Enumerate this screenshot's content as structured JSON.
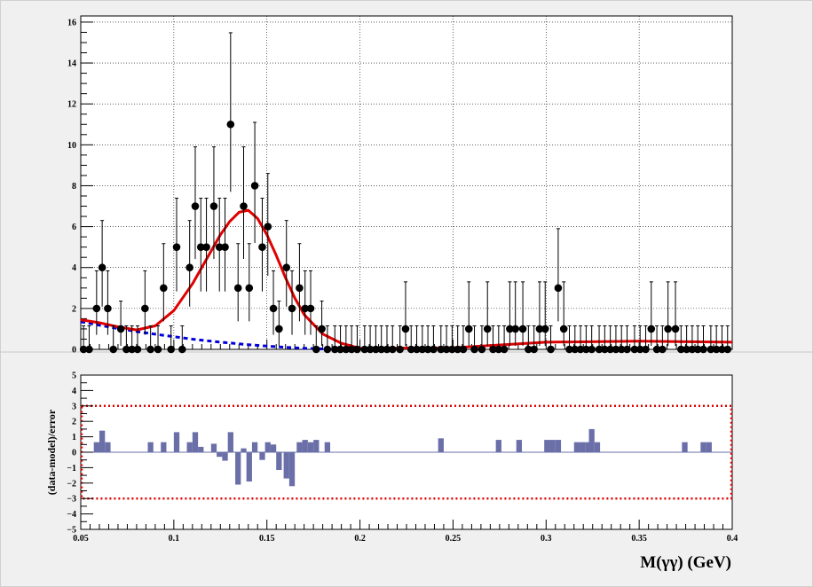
{
  "chart_data": [
    {
      "type": "scatter",
      "panel": "fit",
      "xlim": [
        0.05,
        0.4
      ],
      "ylim": [
        0,
        16.3
      ],
      "xticks": [
        0.05,
        0.1,
        0.15,
        0.2,
        0.25,
        0.3,
        0.35,
        0.4
      ],
      "yticks": [
        0,
        2,
        4,
        6,
        8,
        10,
        12,
        14,
        16
      ],
      "ytick_labels": [
        "0",
        "2",
        "4",
        "6",
        "8",
        "10",
        "12",
        "14",
        "16"
      ],
      "grid": true,
      "data_points": {
        "x": [
          0.0515,
          0.0545,
          0.0585,
          0.0615,
          0.0645,
          0.0675,
          0.0715,
          0.0745,
          0.0775,
          0.0805,
          0.0845,
          0.0875,
          0.0915,
          0.0945,
          0.0985,
          0.1015,
          0.1045,
          0.1085,
          0.1115,
          0.1145,
          0.1175,
          0.1215,
          0.1245,
          0.1275,
          0.1305,
          0.1345,
          0.1375,
          0.1405,
          0.1435,
          0.1475,
          0.1505,
          0.1535,
          0.1565,
          0.1605,
          0.1635,
          0.1675,
          0.1705,
          0.1735,
          0.1765,
          0.1795,
          0.1825,
          0.1865,
          0.1895,
          0.1925,
          0.1955,
          0.1985,
          0.2025,
          0.2055,
          0.2085,
          0.2115,
          0.2145,
          0.2175,
          0.2215,
          0.2245,
          0.2275,
          0.2305,
          0.2335,
          0.2365,
          0.2395,
          0.2435,
          0.2465,
          0.2495,
          0.2525,
          0.2555,
          0.2585,
          0.2615,
          0.2655,
          0.2685,
          0.2715,
          0.2745,
          0.2775,
          0.2805,
          0.2835,
          0.2875,
          0.2905,
          0.2935,
          0.2965,
          0.2995,
          0.3025,
          0.3065,
          0.3095,
          0.3125,
          0.3155,
          0.3185,
          0.3215,
          0.3245,
          0.3285,
          0.3315,
          0.3345,
          0.3375,
          0.3405,
          0.3435,
          0.3475,
          0.3505,
          0.3535,
          0.3565,
          0.3595,
          0.3625,
          0.3655,
          0.3695,
          0.3725,
          0.3755,
          0.3785,
          0.3815,
          0.3845,
          0.3885,
          0.3915,
          0.3945,
          0.3975
        ],
        "y": [
          0,
          0,
          2,
          4,
          2,
          0,
          1,
          0,
          0,
          0,
          2,
          0,
          0,
          3,
          0,
          5,
          0,
          4,
          7,
          5,
          5,
          7,
          5,
          5,
          11,
          3,
          7,
          3,
          8,
          5,
          6,
          2,
          1,
          4,
          2,
          3,
          2,
          2,
          0,
          1,
          0,
          0,
          0,
          0,
          0,
          0,
          0,
          0,
          0,
          0,
          0,
          0,
          0,
          1,
          0,
          0,
          0,
          0,
          0,
          0,
          0,
          0,
          0,
          0,
          1,
          0,
          0,
          1,
          0,
          0,
          0,
          1,
          1,
          1,
          0,
          0,
          1,
          1,
          0,
          3,
          1,
          0,
          0,
          0,
          0,
          0,
          0,
          0,
          0,
          0,
          0,
          0,
          0,
          0,
          0,
          1,
          0,
          0,
          1,
          1,
          0,
          0,
          0,
          0,
          0,
          0,
          0,
          0,
          0
        ],
        "err_up": [
          1.15,
          1.15,
          1.84,
          2.3,
          1.84,
          1.15,
          1.36,
          1.15,
          1.15,
          1.15,
          1.84,
          1.15,
          1.15,
          2.17,
          1.15,
          2.39,
          1.15,
          2.3,
          2.9,
          2.39,
          2.39,
          2.9,
          2.39,
          2.39,
          4.48,
          2.17,
          2.9,
          2.17,
          3.1,
          2.39,
          2.6,
          1.84,
          1.36,
          2.3,
          1.84,
          2.17,
          1.84,
          1.84,
          1.15,
          1.36,
          1.15,
          1.15,
          1.15,
          1.15,
          1.15,
          1.15,
          1.15,
          1.15,
          1.15,
          1.15,
          1.15,
          1.15,
          1.15,
          2.3,
          1.15,
          1.15,
          1.15,
          1.15,
          1.15,
          1.15,
          1.15,
          1.15,
          1.15,
          1.15,
          2.3,
          1.15,
          1.15,
          2.3,
          1.15,
          1.15,
          1.15,
          2.3,
          2.3,
          2.3,
          1.15,
          1.15,
          2.3,
          2.3,
          1.15,
          2.9,
          2.3,
          1.15,
          1.15,
          1.15,
          1.15,
          1.15,
          1.15,
          1.15,
          1.15,
          1.15,
          1.15,
          1.15,
          1.15,
          1.15,
          1.15,
          2.3,
          1.15,
          1.15,
          2.3,
          2.3,
          1.15,
          1.15,
          1.15,
          1.15,
          1.15,
          1.15,
          1.15,
          1.15,
          1.15
        ],
        "err_down": [
          0,
          0,
          1.29,
          1.91,
          1.29,
          0,
          0.83,
          0,
          0,
          0,
          1.29,
          0,
          0,
          1.63,
          0,
          2.17,
          0,
          1.91,
          2.58,
          2.17,
          2.17,
          2.58,
          2.17,
          2.17,
          3.3,
          1.63,
          2.58,
          1.63,
          2.8,
          2.17,
          2.4,
          1.29,
          0.83,
          1.91,
          1.29,
          1.63,
          1.29,
          1.29,
          0,
          0.83,
          0,
          0,
          0,
          0,
          0,
          0,
          0,
          0,
          0,
          0,
          0,
          0,
          0,
          0.83,
          0,
          0,
          0,
          0,
          0,
          0,
          0,
          0,
          0,
          0,
          0.83,
          0,
          0,
          0.83,
          0,
          0,
          0,
          0.83,
          0.83,
          0.83,
          0,
          0,
          0.83,
          0.83,
          0,
          1.63,
          0.83,
          0,
          0,
          0,
          0,
          0,
          0,
          0,
          0,
          0,
          0,
          0,
          0,
          0,
          0,
          0.83,
          0,
          0,
          0.83,
          0.83,
          0,
          0,
          0,
          0,
          0,
          0,
          0,
          0,
          0
        ]
      },
      "total_fit": {
        "x": [
          0.05,
          0.06,
          0.07,
          0.08,
          0.09,
          0.1,
          0.11,
          0.12,
          0.125,
          0.13,
          0.135,
          0.14,
          0.145,
          0.15,
          0.155,
          0.16,
          0.165,
          0.17,
          0.18,
          0.19,
          0.2,
          0.25,
          0.3,
          0.35,
          0.4
        ],
        "y": [
          1.45,
          1.3,
          1.1,
          0.95,
          1.15,
          1.9,
          3.2,
          4.8,
          5.6,
          6.25,
          6.7,
          6.8,
          6.4,
          5.6,
          4.6,
          3.5,
          2.5,
          1.7,
          0.75,
          0.3,
          0.05,
          0.08,
          0.35,
          0.4,
          0.35
        ]
      },
      "background_fit": {
        "x": [
          0.05,
          0.06,
          0.07,
          0.08,
          0.09,
          0.1,
          0.11,
          0.12,
          0.13,
          0.14,
          0.15,
          0.16,
          0.17,
          0.18,
          0.19
        ],
        "y": [
          1.35,
          1.18,
          1.02,
          0.87,
          0.74,
          0.62,
          0.5,
          0.4,
          0.31,
          0.23,
          0.16,
          0.1,
          0.05,
          0.02,
          0.0
        ]
      },
      "colors": {
        "data": "#000000",
        "total_fit": "#e00000",
        "background_fit": "#0000dd"
      }
    },
    {
      "type": "bar",
      "panel": "pull",
      "ylabel": "(data-model)/error",
      "xlabel": "M(γγ) (GeV)",
      "xlim": [
        0.05,
        0.4
      ],
      "ylim": [
        -5,
        5
      ],
      "xticks": [
        0.05,
        0.1,
        0.15,
        0.2,
        0.25,
        0.3,
        0.35,
        0.4
      ],
      "xtick_labels": [
        "0.05",
        "0.1",
        "0.15",
        "0.2",
        "0.25",
        "0.3",
        "0.35",
        "0.4"
      ],
      "yticks": [
        -5,
        -4,
        -3,
        -2,
        -1,
        0,
        1,
        2,
        3,
        4,
        5
      ],
      "ytick_labels": [
        "−5",
        "−4",
        "−3",
        "−2",
        "−1",
        "0",
        "1",
        "2",
        "3",
        "4",
        "5"
      ],
      "bands": [
        -3,
        3
      ],
      "bin_width": 0.003,
      "bins": [
        [
          0.0585,
          0.65
        ],
        [
          0.0615,
          1.4
        ],
        [
          0.0645,
          0.65
        ],
        [
          0.0875,
          0.65
        ],
        [
          0.0945,
          0.65
        ],
        [
          0.1015,
          1.3
        ],
        [
          0.1085,
          0.65
        ],
        [
          0.1115,
          1.3
        ],
        [
          0.1145,
          0.35
        ],
        [
          0.1215,
          0.55
        ],
        [
          0.1245,
          -0.3
        ],
        [
          0.1275,
          -0.55
        ],
        [
          0.1305,
          1.3
        ],
        [
          0.1345,
          -2.1
        ],
        [
          0.1375,
          0.25
        ],
        [
          0.1405,
          -1.9
        ],
        [
          0.1435,
          0.65
        ],
        [
          0.1475,
          -0.5
        ],
        [
          0.1505,
          0.65
        ],
        [
          0.1535,
          0.5
        ],
        [
          0.1565,
          -1.15
        ],
        [
          0.1605,
          -1.7
        ],
        [
          0.1635,
          -2.2
        ],
        [
          0.1675,
          0.65
        ],
        [
          0.1705,
          0.8
        ],
        [
          0.1735,
          0.65
        ],
        [
          0.1765,
          0.8
        ],
        [
          0.1825,
          0.65
        ],
        [
          0.2435,
          0.9
        ],
        [
          0.2745,
          0.8
        ],
        [
          0.2855,
          0.8
        ],
        [
          0.3005,
          0.8
        ],
        [
          0.3035,
          0.8
        ],
        [
          0.3065,
          0.8
        ],
        [
          0.3165,
          0.65
        ],
        [
          0.3195,
          0.65
        ],
        [
          0.3225,
          0.65
        ],
        [
          0.3245,
          1.5
        ],
        [
          0.3275,
          0.65
        ],
        [
          0.3745,
          0.65
        ],
        [
          0.3845,
          0.65
        ],
        [
          0.3875,
          0.65
        ]
      ],
      "colors": {
        "bars": "#6b6fa8",
        "band": "#e00000"
      }
    }
  ]
}
